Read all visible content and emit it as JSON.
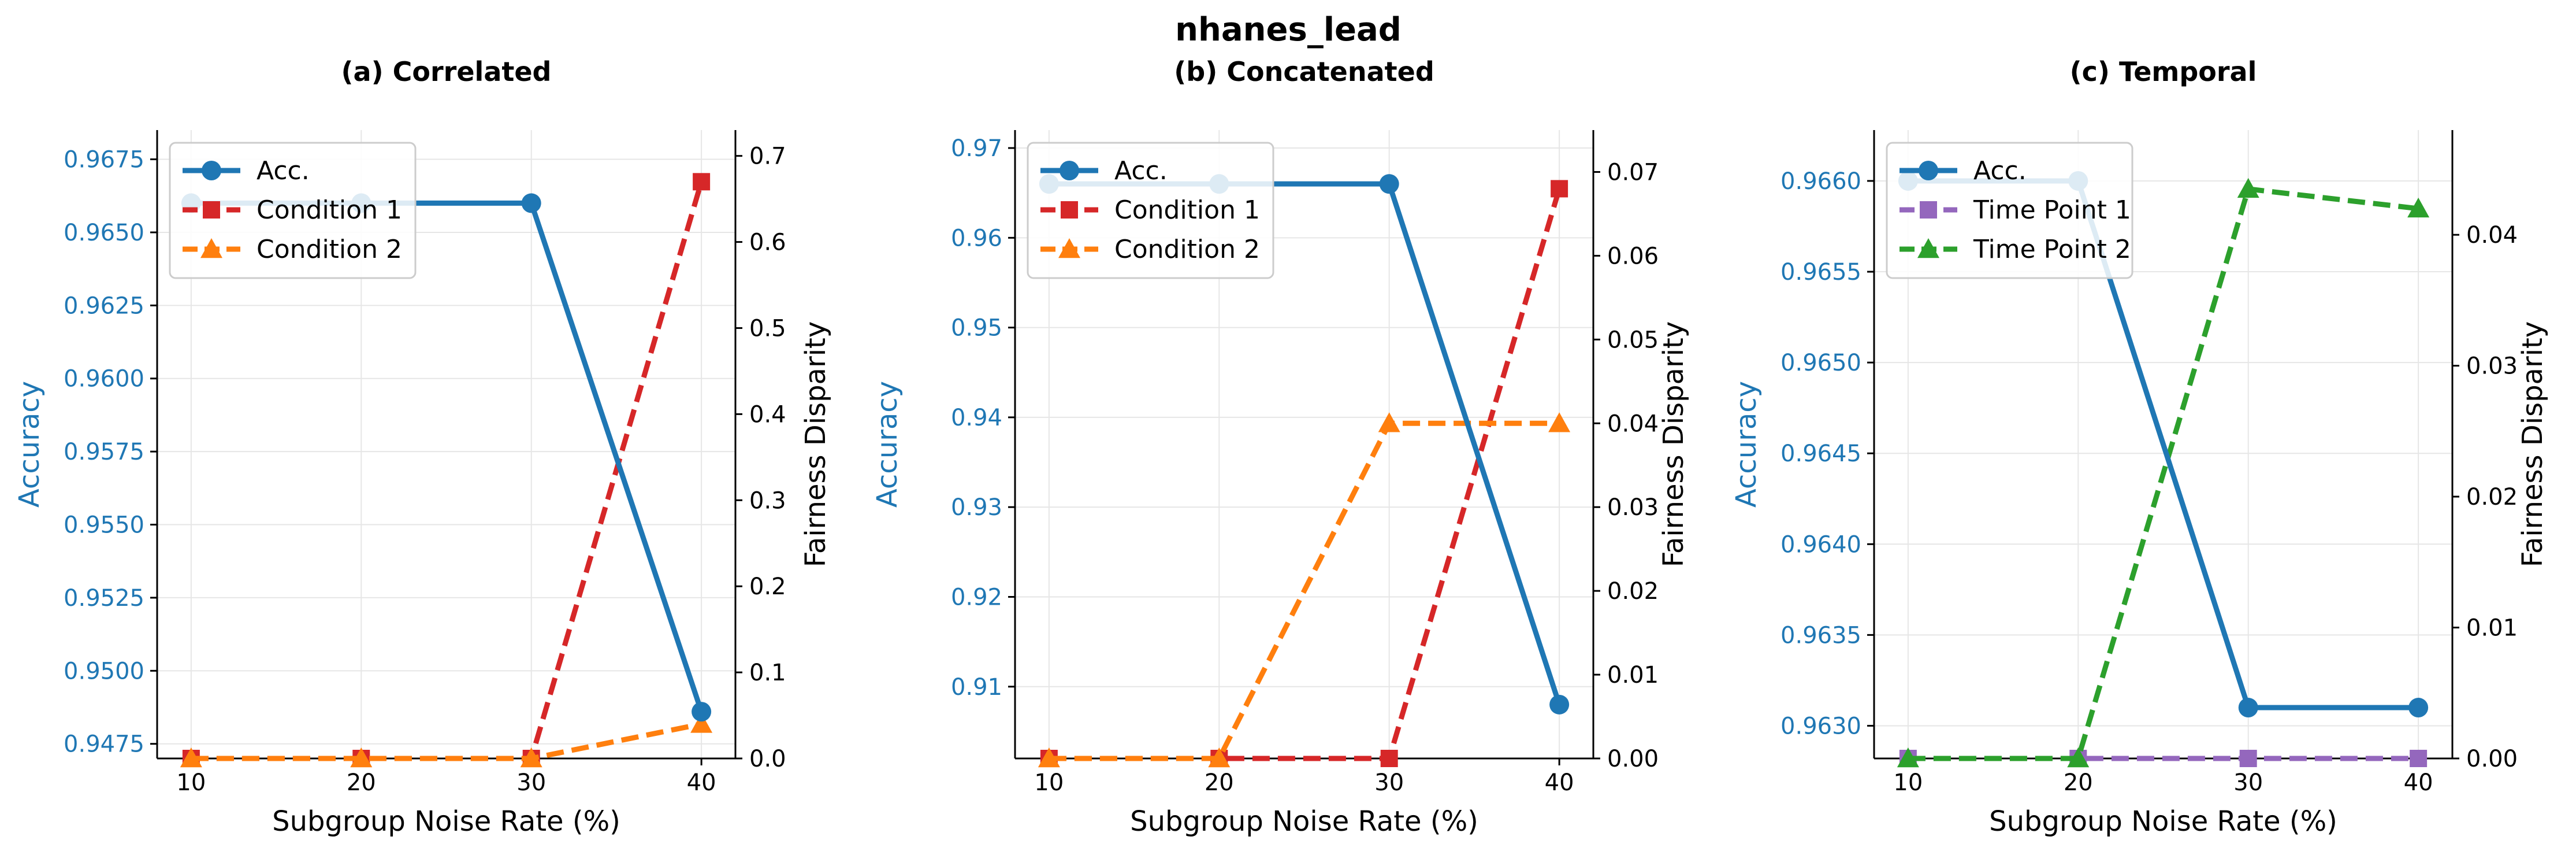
{
  "suptitle": "nhanes_lead",
  "chart_data": [
    {
      "type": "line",
      "title": "(a) Correlated",
      "xlabel": "Subgroup Noise Rate (%)",
      "ylabel_left": "Accuracy",
      "ylabel_right": "Fairness Disparity",
      "x": [
        10,
        20,
        30,
        40
      ],
      "xticks": [
        "10",
        "20",
        "30",
        "40"
      ],
      "xlim": [
        8,
        42
      ],
      "left_ylim": [
        0.947,
        0.9685
      ],
      "left_yticks": [
        "0.9475",
        "0.9500",
        "0.9525",
        "0.9550",
        "0.9575",
        "0.9600",
        "0.9625",
        "0.9650",
        "0.9675"
      ],
      "right_ylim": [
        0,
        0.73
      ],
      "right_yticks": [
        "0.0",
        "0.1",
        "0.2",
        "0.3",
        "0.4",
        "0.5",
        "0.6",
        "0.7"
      ],
      "grid": true,
      "legend": "top-left",
      "left_series": [
        {
          "name": "Acc.",
          "values": [
            0.966,
            0.966,
            0.966,
            0.9486
          ],
          "color": "#1f77b4",
          "marker": "circle",
          "dash": "solid"
        }
      ],
      "right_series": [
        {
          "name": "Condition 1",
          "values": [
            0.0,
            0.0,
            0.0,
            0.67
          ],
          "color": "#d62728",
          "marker": "square",
          "dash": "dashed"
        },
        {
          "name": "Condition 2",
          "values": [
            0.0,
            0.0,
            0.0,
            0.04
          ],
          "color": "#ff7f0e",
          "marker": "triangle",
          "dash": "dashed"
        }
      ]
    },
    {
      "type": "line",
      "title": "(b) Concatenated",
      "xlabel": "Subgroup Noise Rate (%)",
      "ylabel_left": "Accuracy",
      "ylabel_right": "Fairness Disparity",
      "x": [
        10,
        20,
        30,
        40
      ],
      "xticks": [
        "10",
        "20",
        "30",
        "40"
      ],
      "xlim": [
        8,
        42
      ],
      "left_ylim": [
        0.902,
        0.972
      ],
      "left_yticks": [
        "0.91",
        "0.92",
        "0.93",
        "0.94",
        "0.95",
        "0.96",
        "0.97"
      ],
      "right_ylim": [
        0,
        0.075
      ],
      "right_yticks": [
        "0.00",
        "0.01",
        "0.02",
        "0.03",
        "0.04",
        "0.05",
        "0.06",
        "0.07"
      ],
      "grid": true,
      "legend": "top-left",
      "left_series": [
        {
          "name": "Acc.",
          "values": [
            0.966,
            0.966,
            0.966,
            0.908
          ],
          "color": "#1f77b4",
          "marker": "circle",
          "dash": "solid"
        }
      ],
      "right_series": [
        {
          "name": "Condition 1",
          "values": [
            0.0,
            0.0,
            0.0,
            0.068
          ],
          "color": "#d62728",
          "marker": "square",
          "dash": "dashed"
        },
        {
          "name": "Condition 2",
          "values": [
            0.0,
            0.0,
            0.04,
            0.04
          ],
          "color": "#ff7f0e",
          "marker": "triangle",
          "dash": "dashed"
        }
      ]
    },
    {
      "type": "line",
      "title": "(c) Temporal",
      "xlabel": "Subgroup Noise Rate (%)",
      "ylabel_left": "Accuracy",
      "ylabel_right": "Fairness Disparity",
      "x": [
        10,
        20,
        30,
        40
      ],
      "xticks": [
        "10",
        "20",
        "30",
        "40"
      ],
      "xlim": [
        8,
        42
      ],
      "left_ylim": [
        0.96282,
        0.96628
      ],
      "left_yticks": [
        "0.9630",
        "0.9635",
        "0.9640",
        "0.9645",
        "0.9650",
        "0.9655",
        "0.9660"
      ],
      "right_ylim": [
        0,
        0.048
      ],
      "right_yticks": [
        "0.00",
        "0.01",
        "0.02",
        "0.03",
        "0.04"
      ],
      "grid": true,
      "legend": "top-left",
      "left_series": [
        {
          "name": "Acc.",
          "values": [
            0.966,
            0.966,
            0.9631,
            0.9631
          ],
          "color": "#1f77b4",
          "marker": "circle",
          "dash": "solid"
        }
      ],
      "right_series": [
        {
          "name": "Time Point 1",
          "values": [
            0.0,
            0.0,
            0.0,
            0.0
          ],
          "color": "#9467bd",
          "marker": "square",
          "dash": "dashed"
        },
        {
          "name": "Time Point 2",
          "values": [
            0.0,
            0.0,
            0.0435,
            0.042
          ],
          "color": "#2ca02c",
          "marker": "triangle",
          "dash": "dashed"
        }
      ]
    }
  ]
}
